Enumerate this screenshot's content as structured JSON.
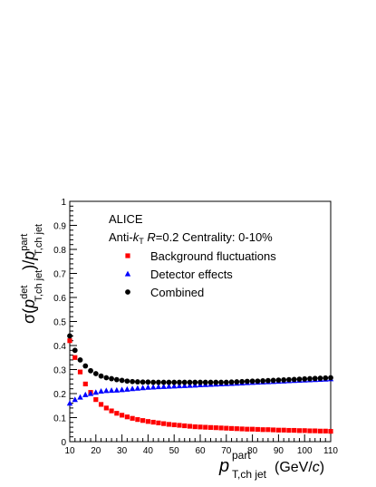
{
  "chart_data": {
    "type": "scatter",
    "title": "",
    "xlim": [
      10,
      110
    ],
    "ylim": [
      0,
      1
    ],
    "x_ticks": [
      10,
      20,
      30,
      40,
      50,
      60,
      70,
      80,
      90,
      100,
      110
    ],
    "y_ticks": [
      0,
      0.1,
      0.2,
      0.3,
      0.4,
      0.5,
      0.6,
      0.7,
      0.8,
      0.9,
      1
    ],
    "grid": false,
    "legend_position": "top-left",
    "annotation": {
      "experiment": "ALICE",
      "algo_prefix": "Anti-",
      "algo_k": "k",
      "algo_sub": "T",
      "radius_label": "R",
      "radius_value": "=0.2 Centrality: 0-10%"
    },
    "xlabel": {
      "main": "p",
      "superscript": "part",
      "subscript": "T,ch jet",
      "unit_open": "(GeV/",
      "unit_c": "c",
      "unit_close": ")"
    },
    "ylabel": {
      "sigma": "σ(",
      "num": "p",
      "num_sup": "det",
      "num_sub": "T,ch jet",
      "slash": ")/",
      "den": "p",
      "den_sup": "part",
      "den_sub": "T,ch jet"
    },
    "x": [
      10,
      12,
      14,
      16,
      18,
      20,
      22,
      24,
      26,
      28,
      30,
      32,
      34,
      36,
      38,
      40,
      42,
      44,
      46,
      48,
      50,
      52,
      54,
      56,
      58,
      60,
      62,
      64,
      66,
      68,
      70,
      72,
      74,
      76,
      78,
      80,
      82,
      84,
      86,
      88,
      90,
      92,
      94,
      96,
      98,
      100,
      102,
      104,
      106,
      108,
      110
    ],
    "series": [
      {
        "name": "Background fluctuations",
        "color": "#ff0000",
        "marker": "square",
        "values": [
          0.42,
          0.35,
          0.29,
          0.24,
          0.205,
          0.175,
          0.155,
          0.14,
          0.128,
          0.118,
          0.11,
          0.103,
          0.097,
          0.092,
          0.088,
          0.084,
          0.081,
          0.078,
          0.075,
          0.072,
          0.07,
          0.068,
          0.066,
          0.064,
          0.062,
          0.061,
          0.06,
          0.059,
          0.058,
          0.057,
          0.056,
          0.055,
          0.054,
          0.053,
          0.052,
          0.052,
          0.051,
          0.05,
          0.05,
          0.049,
          0.048,
          0.048,
          0.047,
          0.047,
          0.046,
          0.046,
          0.045,
          0.045,
          0.044,
          0.044,
          0.043
        ]
      },
      {
        "name": "Detector effects",
        "color": "#0000ff",
        "marker": "triangle",
        "values": [
          0.16,
          0.175,
          0.185,
          0.195,
          0.2,
          0.205,
          0.21,
          0.212,
          0.213,
          0.214,
          0.216,
          0.218,
          0.22,
          0.222,
          0.224,
          0.226,
          0.227,
          0.228,
          0.229,
          0.23,
          0.231,
          0.232,
          0.233,
          0.234,
          0.235,
          0.236,
          0.237,
          0.238,
          0.239,
          0.24,
          0.241,
          0.242,
          0.243,
          0.244,
          0.245,
          0.246,
          0.247,
          0.248,
          0.249,
          0.25,
          0.251,
          0.252,
          0.253,
          0.254,
          0.255,
          0.256,
          0.257,
          0.258,
          0.259,
          0.26,
          0.261
        ]
      },
      {
        "name": "Combined",
        "color": "#000000",
        "marker": "circle",
        "values": [
          0.44,
          0.38,
          0.34,
          0.315,
          0.295,
          0.283,
          0.273,
          0.266,
          0.262,
          0.258,
          0.255,
          0.252,
          0.25,
          0.249,
          0.248,
          0.248,
          0.247,
          0.247,
          0.247,
          0.247,
          0.247,
          0.247,
          0.247,
          0.247,
          0.247,
          0.247,
          0.247,
          0.247,
          0.247,
          0.247,
          0.247,
          0.248,
          0.249,
          0.25,
          0.251,
          0.252,
          0.252,
          0.253,
          0.254,
          0.255,
          0.256,
          0.257,
          0.258,
          0.259,
          0.26,
          0.261,
          0.262,
          0.263,
          0.264,
          0.265,
          0.266
        ]
      }
    ]
  }
}
